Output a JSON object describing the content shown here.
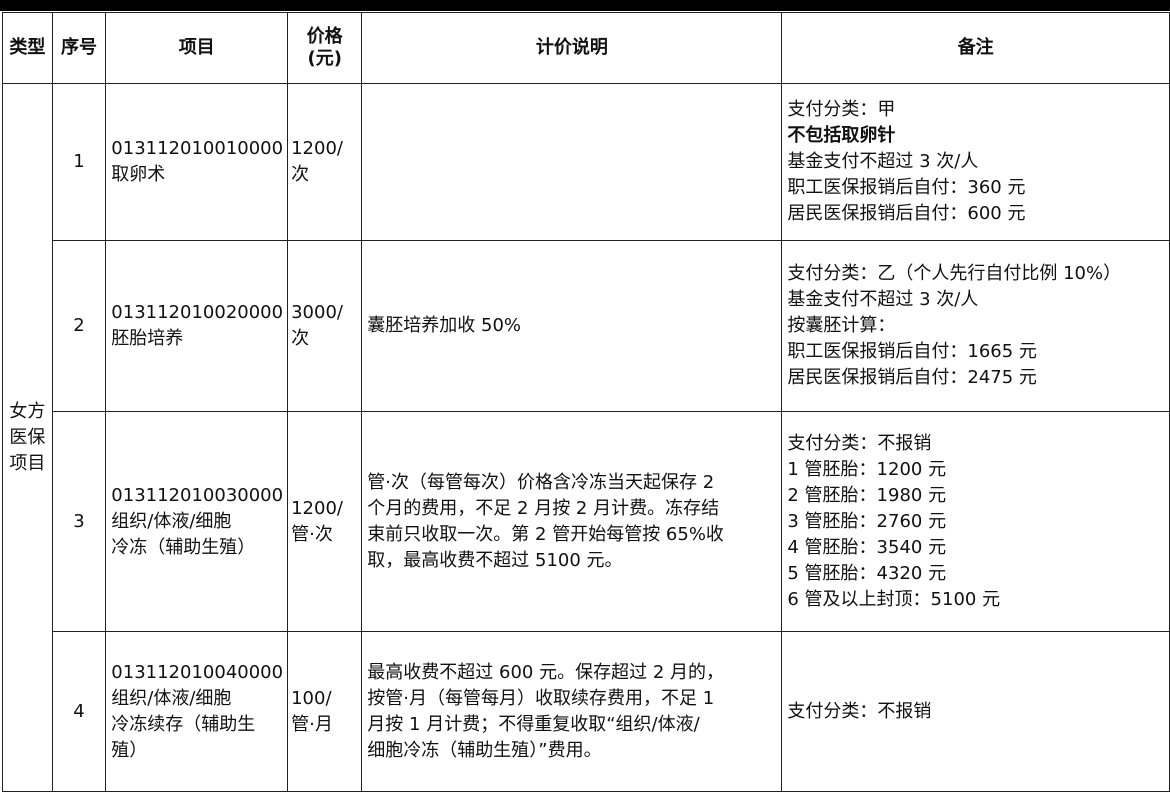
{
  "headers": [
    "类型",
    "序号",
    "项目",
    "价格\n(元)",
    "计价说明",
    "备注"
  ],
  "header_price_lines": [
    "价格",
    "(元)"
  ],
  "category_lines": [
    "女方",
    "医保",
    "项目"
  ],
  "rows": [
    {
      "no": "1",
      "item_lines": [
        "013112010010000",
        "取卵术"
      ],
      "price_lines": [
        "1200/",
        "次"
      ],
      "desc_lines": [],
      "note_lines": [
        "支付分类：甲",
        "不包括取卵针",
        "基金支付不超过 3 次/人",
        "职工医保报销后自付：360 元",
        "居民医保报销后自付：600 元"
      ],
      "note_bold_index": 1
    },
    {
      "no": "2",
      "item_lines": [
        "013112010020000",
        "胚胎培养"
      ],
      "price_lines": [
        "3000/",
        "次"
      ],
      "desc_lines": [
        "囊胚培养加收 50%"
      ],
      "note_lines": [
        "支付分类：乙（个人先行自付比例 10%）",
        "基金支付不超过 3 次/人",
        "按囊胚计算：",
        "职工医保报销后自付：1665 元",
        "居民医保报销后自付：2475 元"
      ]
    },
    {
      "no": "3",
      "item_lines": [
        "013112010030000",
        "组织/体液/细胞",
        "冷冻（辅助生殖）"
      ],
      "price_lines": [
        "1200/",
        "管·次"
      ],
      "desc_lines": [
        "管·次（每管每次）价格含冷冻当天起保存 2",
        "个月的费用，不足 2 月按 2 月计费。冻存结",
        "束前只收取一次。第 2 管开始每管按 65%收",
        "取，最高收费不超过 5100 元。"
      ],
      "note_lines": [
        "支付分类：不报销",
        "1 管胚胎：1200 元",
        "2 管胚胎：1980 元",
        "3 管胚胎：2760 元",
        "4 管胚胎：3540 元",
        "5 管胚胎：4320 元",
        "6 管及以上封顶：5100 元"
      ]
    },
    {
      "no": "4",
      "item_lines": [
        "013112010040000",
        "组织/体液/细胞",
        "冷冻续存（辅助生",
        "殖）"
      ],
      "price_lines": [
        "100/",
        "管·月"
      ],
      "desc_lines": [
        "最高收费不超过 600 元。保存超过 2 月的，",
        "按管·月（每管每月）收取续存费用，不足 1",
        "月按 1 月计费；不得重复收取“组织/体液/",
        "细胞冷冻（辅助生殖）”费用。"
      ],
      "note_lines": [
        "支付分类：不报销"
      ]
    }
  ]
}
